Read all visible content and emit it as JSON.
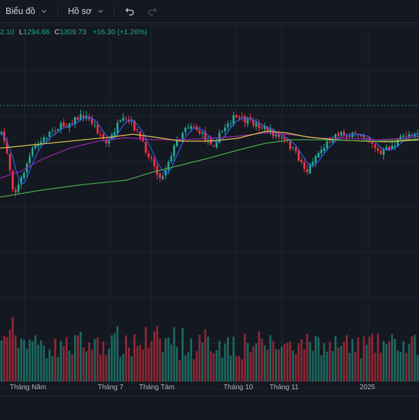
{
  "toolbar": {
    "chart_menu_label": "Biểu đồ",
    "profile_menu_label": "Hồ sơ"
  },
  "legend": {
    "high_value": "2.10",
    "low_label": "L",
    "low_value": "1294.66",
    "close_label": "C",
    "close_value": "1309.73",
    "change_value": "+16.30 (+1.26%)"
  },
  "colors": {
    "background": "#141821",
    "grid": "#1f2430",
    "up": "#22ab94",
    "down": "#f23645",
    "ma_short": "#2962ff",
    "ma_mid": "#9c27b0",
    "ma_long_yellow": "#e6c84a",
    "ma_long_green": "#4caf50"
  },
  "time_axis": {
    "labels": [
      "Tháng Năm",
      "Tháng 7",
      "Tháng Tám",
      "Tháng 10",
      "Tháng 11",
      "2025"
    ]
  },
  "chart_data": {
    "type": "candlestick",
    "symbol_close": 1309.73,
    "change": 16.3,
    "change_pct": 1.26,
    "note_price_levels": "price axis not visible",
    "time_labels": [
      "Tháng Năm",
      "Tháng 7",
      "Tháng Tám",
      "Tháng 10",
      "Tháng 11",
      "2025"
    ],
    "indicators": [
      "ma_short",
      "ma_mid",
      "ma_long_yellow",
      "ma_long_green"
    ],
    "volume_panel": true
  }
}
